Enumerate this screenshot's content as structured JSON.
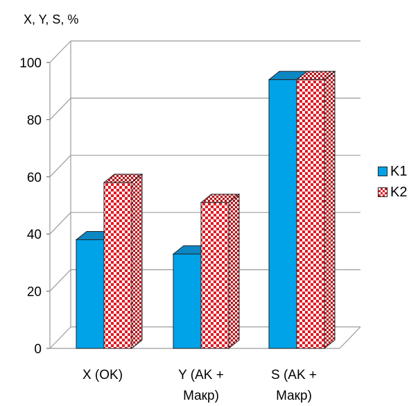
{
  "chart_data": {
    "type": "bar",
    "ylabel": "X, Y, S, %",
    "categories": [
      [
        "X (OK)"
      ],
      [
        "Y (AK +",
        "Макр)"
      ],
      [
        "S (AK +",
        "Макр)"
      ]
    ],
    "series": [
      {
        "name": "K1",
        "values": [
          38,
          33,
          94
        ],
        "color": "#00a2e8"
      },
      {
        "name": "K2",
        "values": [
          58,
          51,
          94
        ],
        "color": "#e11b24"
      }
    ],
    "ylim": [
      0,
      100
    ],
    "yticks": [
      0,
      20,
      40,
      60,
      80,
      100
    ],
    "grid": true,
    "legend_position": "right"
  }
}
